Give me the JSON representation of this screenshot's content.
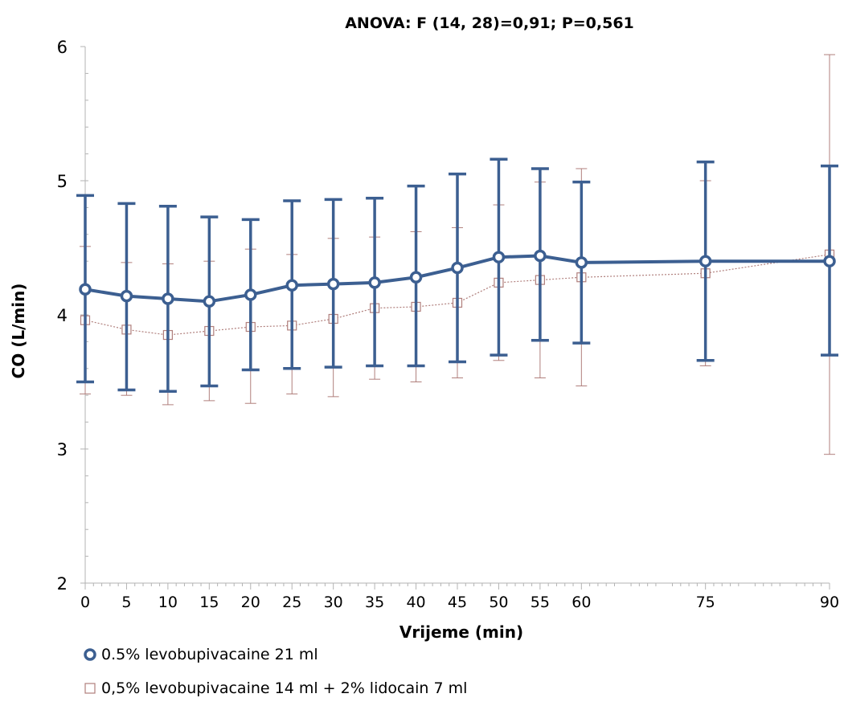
{
  "chart_data": {
    "type": "line",
    "title": "ANOVA: F (14, 28)=0,91; P=0,561",
    "xlabel": "Vrijeme (min)",
    "ylabel": "CO (L/min)",
    "xlim": [
      0,
      90
    ],
    "ylim": [
      2,
      6
    ],
    "x_ticks": [
      0,
      5,
      10,
      15,
      20,
      25,
      30,
      35,
      40,
      45,
      50,
      55,
      60,
      75,
      90
    ],
    "y_ticks": [
      2,
      3,
      4,
      5,
      6
    ],
    "grid": false,
    "legend_position": "bottom-left",
    "series": [
      {
        "name": "0.5% levobupivacaine 21 ml",
        "color": "#3c5f91",
        "marker": "circle",
        "line_style": "solid",
        "x": [
          0,
          5,
          10,
          15,
          20,
          25,
          30,
          35,
          40,
          45,
          50,
          55,
          60,
          75,
          90
        ],
        "y": [
          4.19,
          4.14,
          4.12,
          4.1,
          4.15,
          4.22,
          4.23,
          4.24,
          4.28,
          4.35,
          4.43,
          4.44,
          4.39,
          4.4,
          4.4
        ],
        "error_low": [
          3.5,
          3.44,
          3.43,
          3.47,
          3.59,
          3.6,
          3.61,
          3.62,
          3.62,
          3.65,
          3.7,
          3.81,
          3.79,
          3.66,
          3.7
        ],
        "error_high": [
          4.89,
          4.83,
          4.81,
          4.73,
          4.71,
          4.85,
          4.86,
          4.87,
          4.96,
          5.05,
          5.16,
          5.09,
          4.99,
          5.14,
          5.11
        ]
      },
      {
        "name": "0,5% levobupivacaine 14 ml + 2% lidocain 7 ml",
        "color": "#b07f7c",
        "marker": "square",
        "line_style": "dotted",
        "x": [
          0,
          5,
          10,
          15,
          20,
          25,
          30,
          35,
          40,
          45,
          50,
          55,
          60,
          75,
          90
        ],
        "y": [
          3.96,
          3.89,
          3.85,
          3.88,
          3.91,
          3.92,
          3.97,
          4.05,
          4.06,
          4.09,
          4.24,
          4.26,
          4.28,
          4.31,
          4.45
        ],
        "error_low": [
          3.41,
          3.4,
          3.33,
          3.36,
          3.34,
          3.41,
          3.39,
          3.52,
          3.5,
          3.53,
          3.66,
          3.53,
          3.47,
          3.62,
          2.96
        ],
        "error_high": [
          4.51,
          4.39,
          4.38,
          4.4,
          4.49,
          4.45,
          4.57,
          4.58,
          4.62,
          4.65,
          4.82,
          4.99,
          5.09,
          5.0,
          5.94
        ]
      }
    ]
  }
}
